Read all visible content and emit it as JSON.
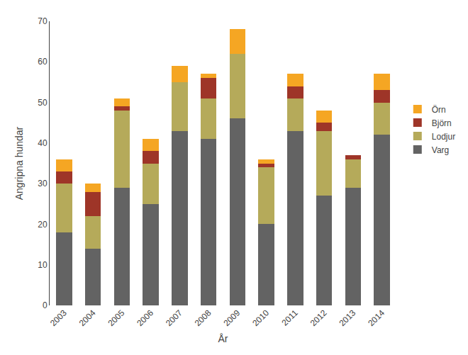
{
  "chart_data": {
    "type": "bar",
    "stacked": true,
    "xlabel": "År",
    "ylabel": "Angripna hundar",
    "categories": [
      "2003",
      "2004",
      "2005",
      "2006",
      "2007",
      "2008",
      "2009",
      "2010",
      "2011",
      "2012",
      "2013",
      "2014"
    ],
    "series": [
      {
        "name": "Varg",
        "color": "#636363",
        "values": [
          18,
          14,
          29,
          25,
          43,
          41,
          46,
          20,
          43,
          27,
          29,
          42
        ]
      },
      {
        "name": "Lodjur",
        "color": "#b5aa5a",
        "values": [
          12,
          8,
          19,
          10,
          12,
          10,
          16,
          14,
          8,
          16,
          7,
          8
        ]
      },
      {
        "name": "Björn",
        "color": "#9e3528",
        "values": [
          3,
          6,
          1,
          3,
          0,
          5,
          0,
          1,
          3,
          2,
          1,
          3
        ]
      },
      {
        "name": "Örn",
        "color": "#f5a623",
        "values": [
          3,
          2,
          2,
          3,
          4,
          1,
          6,
          1,
          3,
          3,
          0,
          4
        ]
      }
    ],
    "ylim": [
      0,
      70
    ],
    "yticks": [
      0,
      10,
      20,
      30,
      40,
      50,
      60,
      70
    ],
    "grid": false,
    "legend": "right"
  }
}
